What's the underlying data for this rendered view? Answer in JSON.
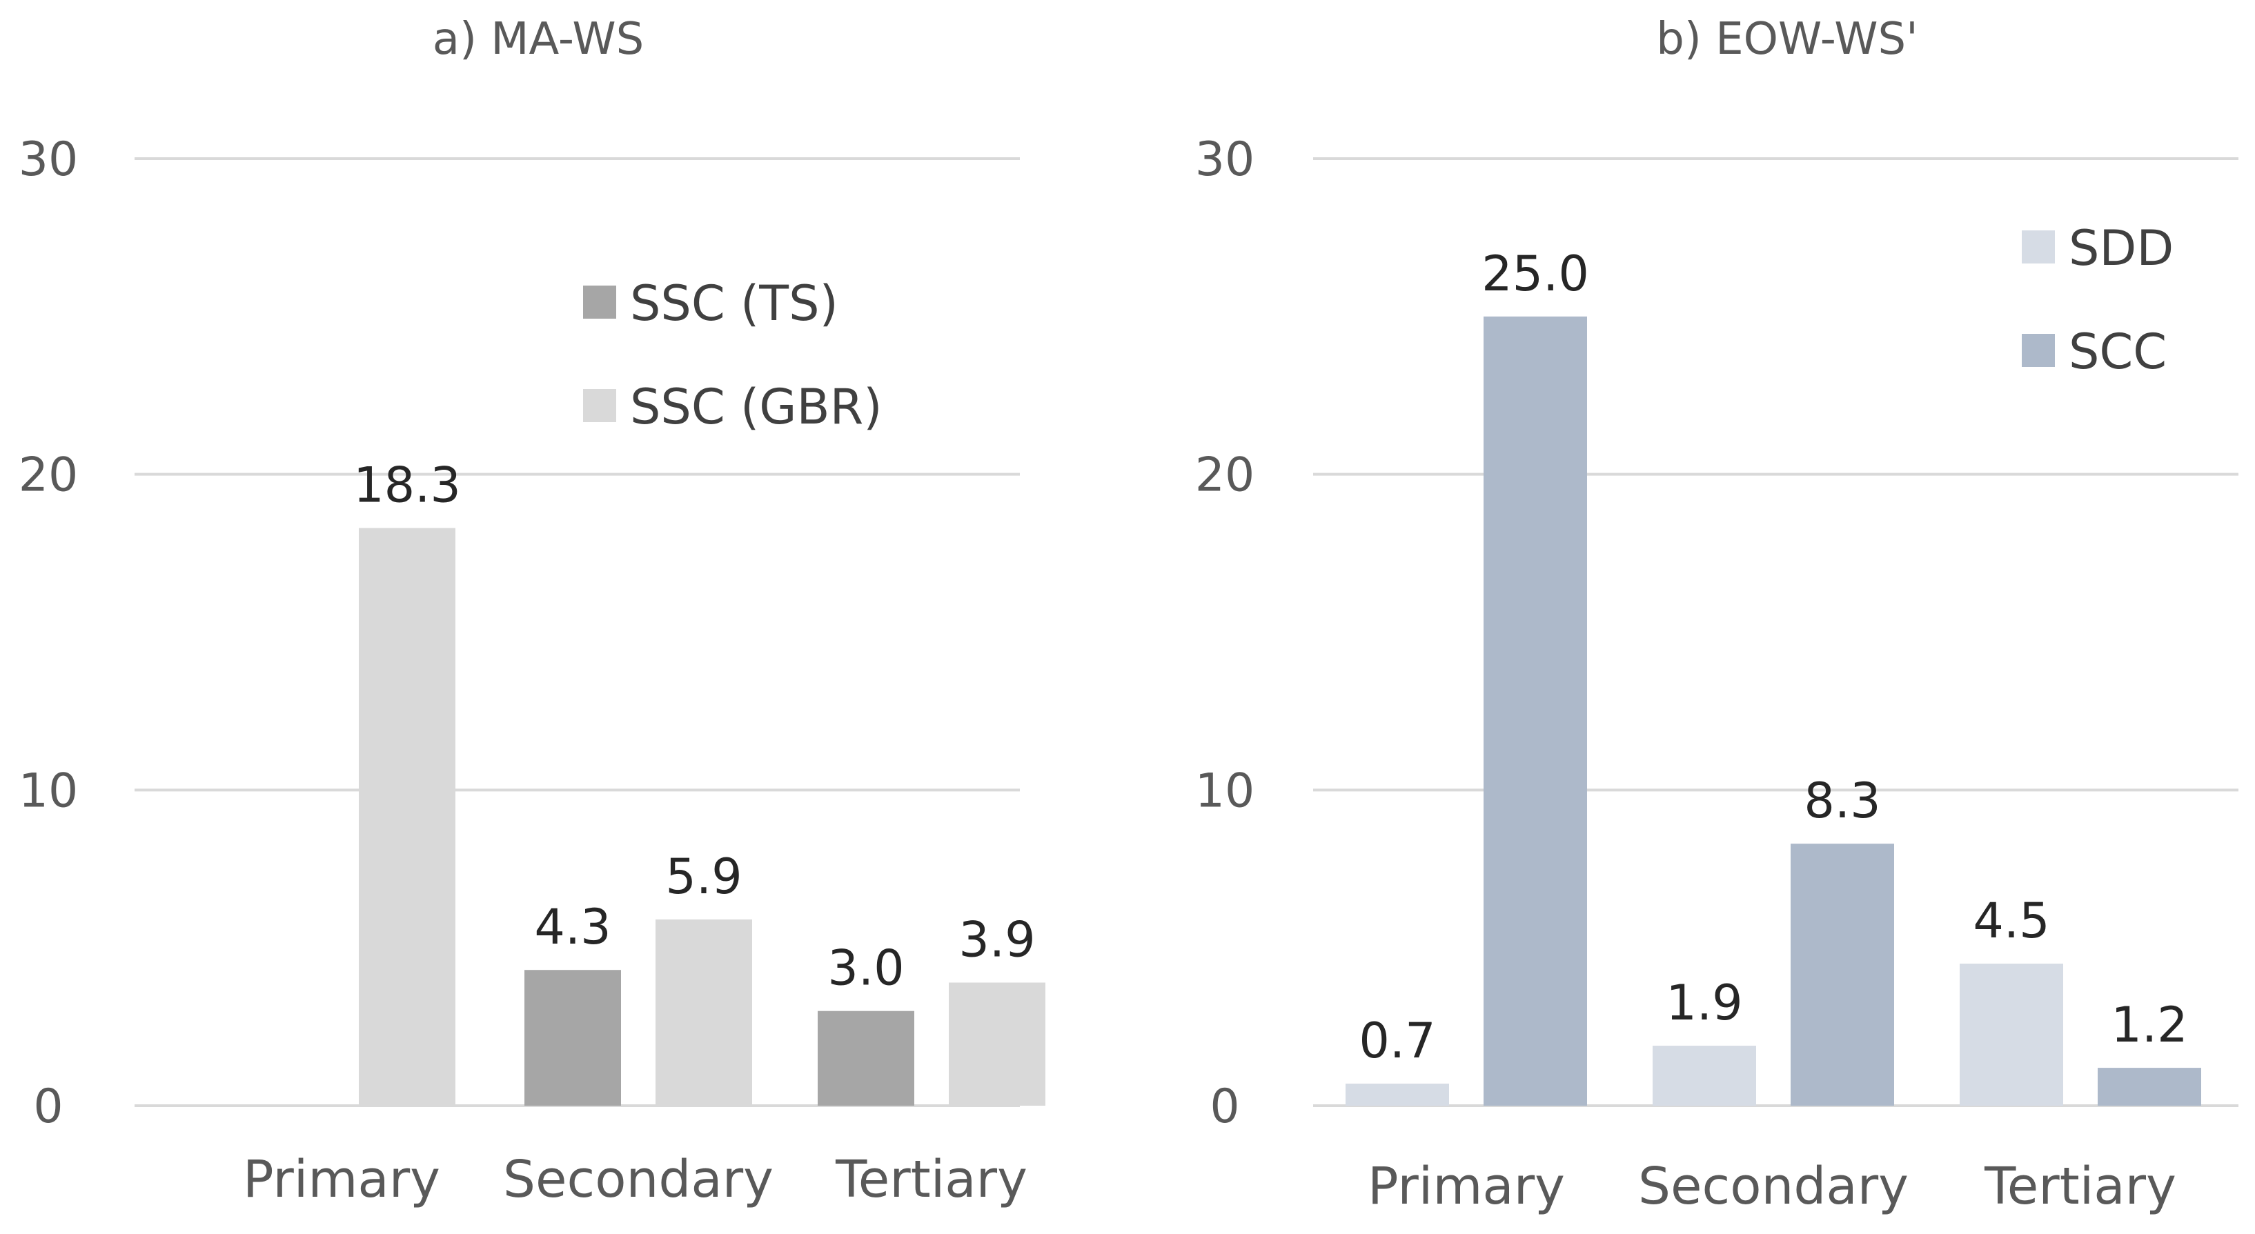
{
  "chart_data": [
    {
      "type": "bar",
      "title": "a) MA-WS",
      "categories": [
        "Primary",
        "Secondary",
        "Tertiary"
      ],
      "ylim": [
        0,
        30
      ],
      "yticks": [
        0,
        10,
        20,
        30
      ],
      "ytick_labels": [
        "0",
        "10",
        "20",
        "30"
      ],
      "grid": true,
      "legend_position": "upper-middle",
      "series": [
        {
          "name": "SSC (TS)",
          "color": "#a6a6a6",
          "values": [
            null,
            4.3,
            3.0
          ],
          "labels": [
            "",
            "4.3",
            "3.0"
          ]
        },
        {
          "name": "SSC (GBR)",
          "color": "#d9d9d9",
          "values": [
            18.3,
            5.9,
            3.9
          ],
          "labels": [
            "18.3",
            "5.9",
            "3.9"
          ]
        }
      ]
    },
    {
      "type": "bar",
      "title": "b) EOW-WS'",
      "categories": [
        "Primary",
        "Secondary",
        "Tertiary"
      ],
      "ylim": [
        0,
        30
      ],
      "yticks": [
        0,
        10,
        20,
        30
      ],
      "ytick_labels": [
        "0",
        "10",
        "20",
        "30"
      ],
      "grid": true,
      "legend_position": "top-right",
      "series": [
        {
          "name": "SDD",
          "color": "#d6dce5",
          "values": [
            0.7,
            1.9,
            4.5
          ],
          "labels": [
            "0.7",
            "1.9",
            "4.5"
          ]
        },
        {
          "name": "SCC",
          "color": "#adb9ca",
          "values": [
            25.0,
            8.3,
            1.2
          ],
          "labels": [
            "25.0",
            "8.3",
            "1.2"
          ]
        }
      ]
    }
  ]
}
